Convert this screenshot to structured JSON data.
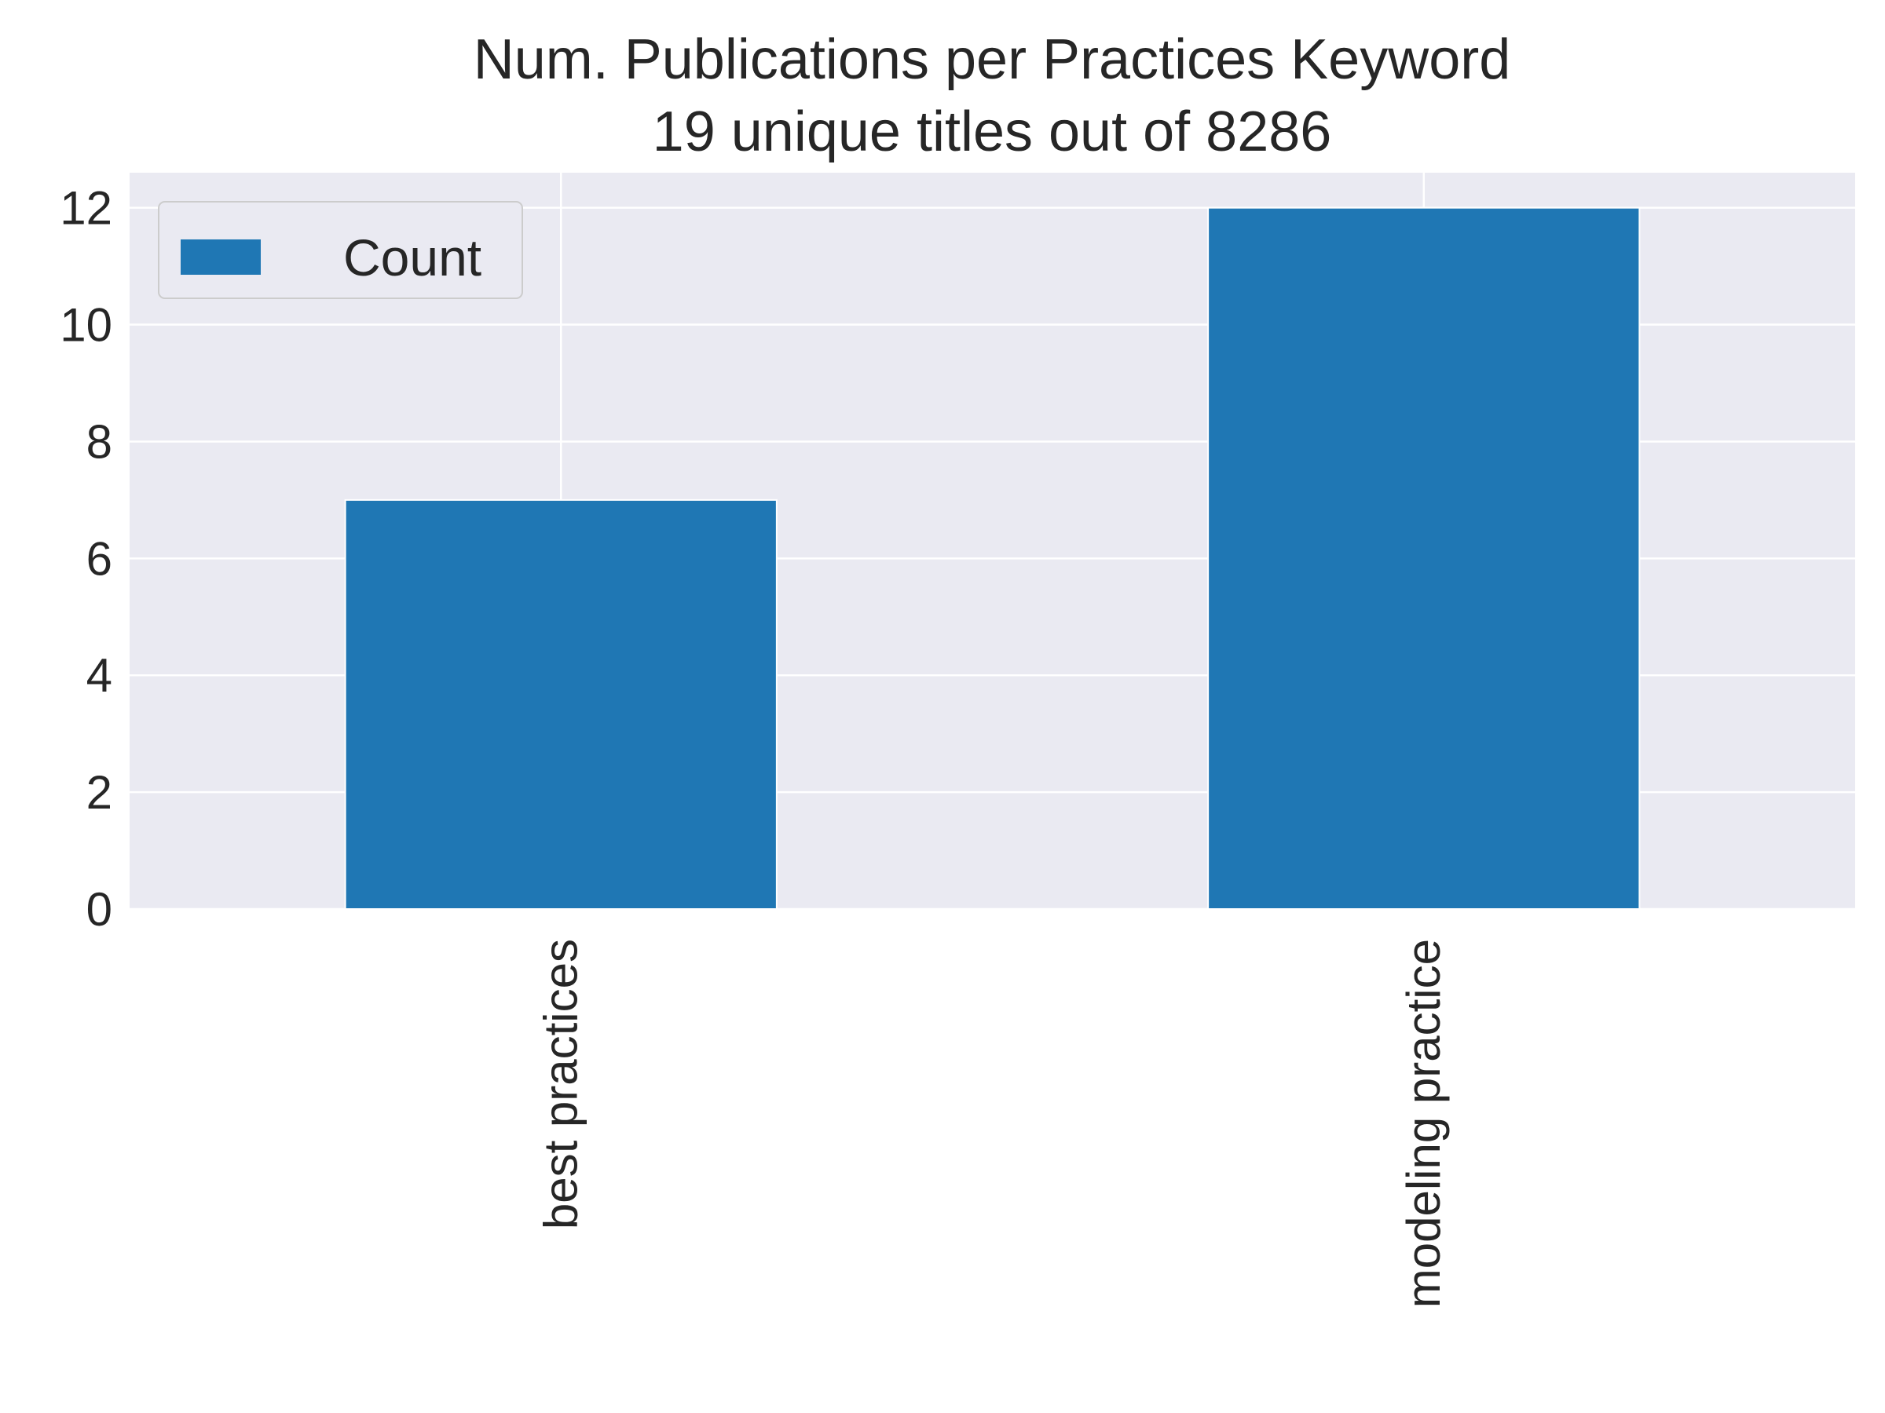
{
  "chart_data": {
    "type": "bar",
    "title": "Num. Publications per Practices Keyword",
    "subtitle": "19 unique titles out of 8286",
    "categories": [
      "best practices",
      "modeling practice"
    ],
    "series": [
      {
        "name": "Count",
        "values": [
          7,
          12
        ]
      }
    ],
    "xlabel": "",
    "ylabel": "",
    "ylim": [
      0,
      12.6
    ],
    "yticks": [
      0,
      2,
      4,
      6,
      8,
      10,
      12
    ],
    "grid": true,
    "legend": "top-left",
    "colors": {
      "bar": "#1f77b4",
      "background": "#eaeaf2",
      "grid": "#ffffff",
      "text": "#262626"
    }
  }
}
